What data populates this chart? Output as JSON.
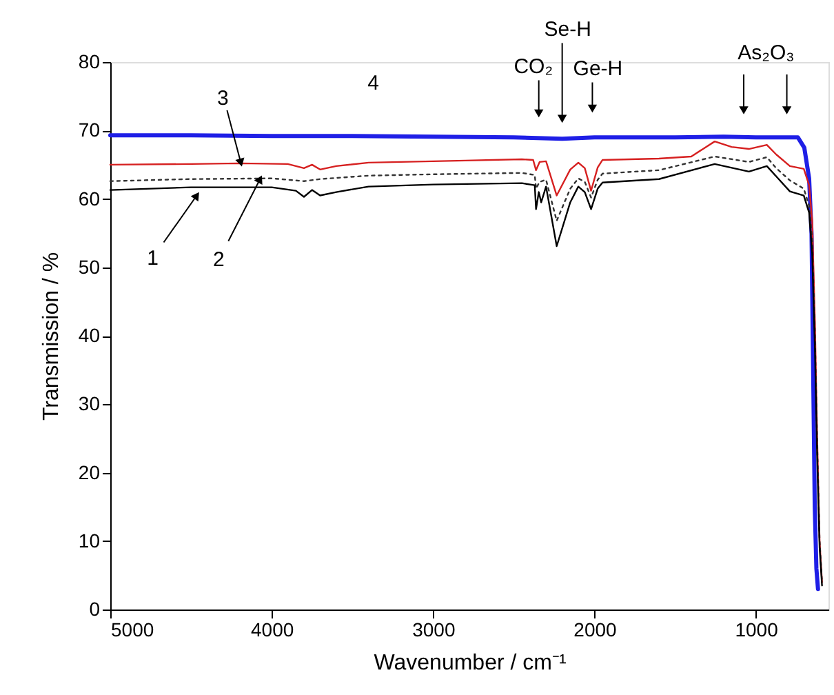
{
  "chart_data": {
    "type": "line",
    "xlabel": "Wavenumber / cm⁻¹",
    "ylabel": "Transmission / %",
    "xlim": [
      5000,
      550
    ],
    "xticks": [
      5000,
      4000,
      3000,
      2000,
      1000
    ],
    "ylim": [
      0,
      80
    ],
    "yticks": [
      0,
      10,
      20,
      30,
      40,
      50,
      60,
      70,
      80
    ],
    "grid": false,
    "marker": "none",
    "series": [
      {
        "color": "#000000",
        "line_style": "solid",
        "x": [
          5000,
          4500,
          4000,
          3850,
          3800,
          3750,
          3700,
          3600,
          3400,
          3000,
          2450,
          2370,
          2362,
          2345,
          2330,
          2300,
          2234,
          2150,
          2100,
          2060,
          2021,
          1980,
          1950,
          1600,
          1255,
          1043,
          932,
          874,
          789,
          703,
          670,
          651,
          634,
          620,
          605,
          590
        ],
        "values": [
          61.3,
          61.7,
          61.7,
          61.2,
          60.3,
          61.3,
          60.5,
          61.0,
          61.8,
          62.1,
          62.3,
          62.0,
          58.5,
          61.0,
          59.5,
          61.8,
          53.1,
          59.5,
          61.8,
          61.0,
          58.5,
          61.5,
          62.4,
          62.9,
          65.1,
          64.0,
          64.8,
          63.3,
          61.1,
          60.5,
          58,
          52,
          38,
          22,
          9,
          3.5
        ]
      },
      {
        "color": "#333333",
        "line_style": "dotted",
        "x": [
          5000,
          4500,
          4000,
          3800,
          3700,
          3400,
          3000,
          2450,
          2370,
          2362,
          2340,
          2300,
          2234,
          2150,
          2100,
          2060,
          2021,
          1980,
          1950,
          1600,
          1255,
          1043,
          932,
          874,
          789,
          703,
          670,
          651,
          634,
          620,
          605,
          590
        ],
        "values": [
          62.6,
          62.9,
          63.0,
          62.6,
          62.9,
          63.4,
          63.6,
          63.8,
          63.5,
          61.5,
          62.5,
          62.8,
          56.8,
          61.5,
          63.0,
          62.5,
          60.2,
          62.8,
          63.7,
          64.2,
          66.2,
          65.4,
          66.1,
          64.5,
          62.7,
          61.5,
          59,
          54,
          40,
          24,
          10,
          4
        ]
      },
      {
        "color": "#d62020",
        "line_style": "solid",
        "x": [
          5000,
          4500,
          4200,
          3900,
          3800,
          3750,
          3700,
          3600,
          3400,
          3000,
          2800,
          2450,
          2380,
          2362,
          2340,
          2300,
          2234,
          2150,
          2100,
          2060,
          2021,
          1980,
          1950,
          1600,
          1400,
          1255,
          1150,
          1043,
          932,
          874,
          789,
          703,
          670,
          651,
          634,
          620,
          605,
          590
        ],
        "values": [
          65.0,
          65.1,
          65.2,
          65.1,
          64.5,
          65.0,
          64.3,
          64.8,
          65.3,
          65.5,
          65.6,
          65.8,
          65.7,
          64.2,
          65.4,
          65.5,
          60.5,
          64.3,
          65.3,
          64.5,
          61.2,
          64.6,
          65.7,
          65.9,
          66.2,
          68.4,
          67.6,
          67.3,
          67.9,
          66.5,
          64.8,
          64.4,
          62,
          56.8,
          42,
          25,
          10,
          4
        ]
      },
      {
        "color": "#1f1fe6",
        "line_style": "solid",
        "x": [
          5000,
          4500,
          4000,
          3500,
          3000,
          2500,
          2200,
          2000,
          1500,
          1200,
          1000,
          800,
          740,
          700,
          670,
          655,
          645,
          635,
          625,
          615
        ],
        "values": [
          69.3,
          69.3,
          69.2,
          69.2,
          69.1,
          69.0,
          68.8,
          69.0,
          69.0,
          69.1,
          69.0,
          69.0,
          69.0,
          67.5,
          63,
          55,
          35,
          15,
          6,
          3
        ]
      }
    ],
    "annotations": [
      {
        "text": "1",
        "x": 4464,
        "y": 60.5
      },
      {
        "text": "2",
        "x": 4072,
        "y": 62.9
      },
      {
        "text": "3",
        "x": 4191,
        "y": 65.3
      },
      {
        "text": "4",
        "x": 3370,
        "y": 69.1
      },
      {
        "text": "CO₂",
        "x": 2345,
        "y": 72.5
      },
      {
        "text": "Se-H",
        "x": 2200,
        "y": 71.7
      },
      {
        "text": "Ge-H",
        "x": 2013,
        "y": 73.2
      },
      "As₂O₃"
    ]
  }
}
